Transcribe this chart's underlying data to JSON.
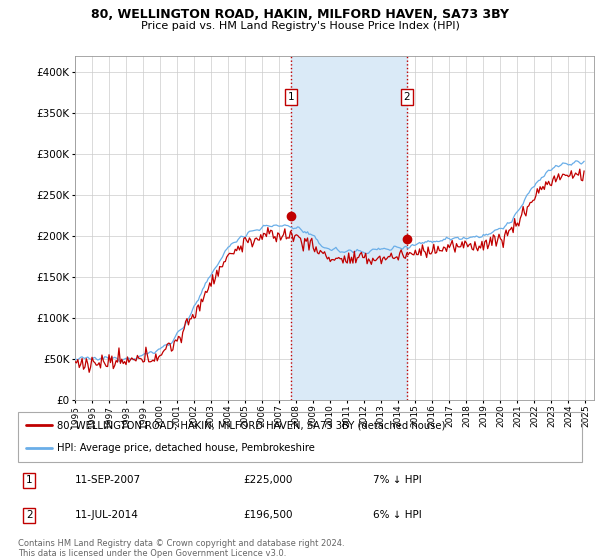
{
  "title_line1": "80, WELLINGTON ROAD, HAKIN, MILFORD HAVEN, SA73 3BY",
  "title_line2": "Price paid vs. HM Land Registry's House Price Index (HPI)",
  "legend_line1": "80, WELLINGTON ROAD, HAKIN, MILFORD HAVEN, SA73 3BY (detached house)",
  "legend_line2": "HPI: Average price, detached house, Pembrokeshire",
  "footer": "Contains HM Land Registry data © Crown copyright and database right 2024.\nThis data is licensed under the Open Government Licence v3.0.",
  "sale1_date": "11-SEP-2007",
  "sale1_price": "£225,000",
  "sale1_hpi": "7% ↓ HPI",
  "sale2_date": "11-JUL-2014",
  "sale2_price": "£196,500",
  "sale2_hpi": "6% ↓ HPI",
  "sale1_year": 2007.7,
  "sale1_value": 225000,
  "sale2_year": 2014.5,
  "sale2_value": 196500,
  "hpi_color": "#6aaee8",
  "sale_color": "#c00000",
  "shade_color": "#daeaf7",
  "background_color": "#ffffff",
  "ylim": [
    0,
    420000
  ],
  "yticks": [
    0,
    50000,
    100000,
    150000,
    200000,
    250000,
    300000,
    350000,
    400000
  ],
  "ytick_labels": [
    "£0",
    "£50K",
    "£100K",
    "£150K",
    "£200K",
    "£250K",
    "£300K",
    "£350K",
    "£400K"
  ],
  "xlim_start": 1995,
  "xlim_end": 2025.5
}
